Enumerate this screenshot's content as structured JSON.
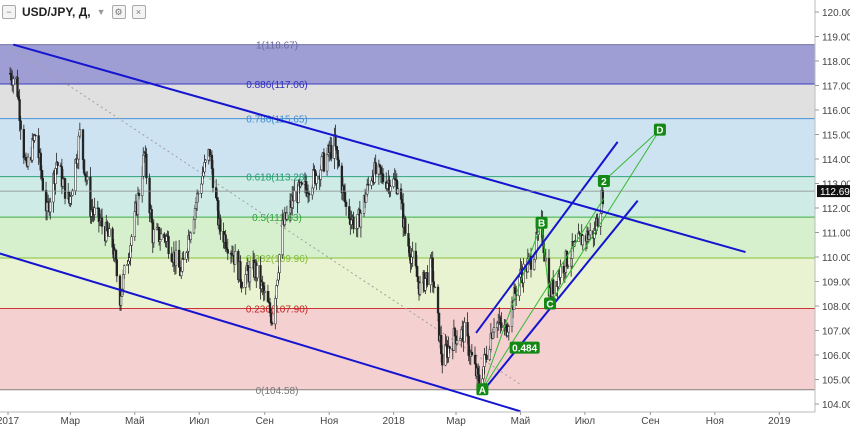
{
  "header": {
    "symbol": "USD/JPY, Д,",
    "icons": [
      "collapse-icon",
      "caret-down-icon",
      "settings-icon",
      "close-icon"
    ]
  },
  "chart_data": {
    "type": "candlestick",
    "title": "",
    "xlabel": "",
    "ylabel": "",
    "ylim": [
      104.0,
      120.0
    ],
    "y_ticks": [
      "104.00",
      "105.00",
      "106.00",
      "107.00",
      "108.00",
      "109.00",
      "110.00",
      "111.00",
      "112.00",
      "113.00",
      "114.00",
      "115.00",
      "116.00",
      "117.00",
      "118.00",
      "119.00",
      "120.00"
    ],
    "x_ticks": [
      "2017",
      "Мар",
      "Май",
      "Июл",
      "Сен",
      "Ноя",
      "2018",
      "Мар",
      "Май",
      "Июл",
      "Сен",
      "Ноя",
      "2019"
    ],
    "x_range": [
      "2017-01-01",
      "2019-01-31"
    ],
    "current_price": "112.69",
    "colors": {
      "candles": "#222222",
      "channel": "#1515d0",
      "pattern": "#35b835",
      "label_bg": "#148814",
      "price_tag": "#111111"
    },
    "fib_levels": [
      {
        "ratio": 1,
        "price": 118.67,
        "label": "1(118.67)",
        "color": "#6a6a9e",
        "fill": "#8d8dcd",
        "next": 117.06
      },
      {
        "ratio": 0.886,
        "price": 117.06,
        "label": "0.886(117.06)",
        "color": "#2d2dbd",
        "fill": "#dadada",
        "next": 115.65
      },
      {
        "ratio": 0.786,
        "price": 115.65,
        "label": "0.786(115.65)",
        "color": "#3b8bd3",
        "fill": "#c6def0",
        "next": 113.28
      },
      {
        "ratio": 0.618,
        "price": 113.28,
        "label": "0.618(113.28)",
        "color": "#1e9c6c",
        "fill": "#c6e9e0",
        "next": 111.63
      },
      {
        "ratio": 0.5,
        "price": 111.63,
        "label": "0.5(111.63)",
        "color": "#2ea534",
        "fill": "#cfedc4",
        "next": 109.96
      },
      {
        "ratio": 0.382,
        "price": 109.96,
        "label": "0.382(109.96)",
        "color": "#7fbc2e",
        "fill": "#e6f1c9",
        "next": 107.9
      },
      {
        "ratio": 0.236,
        "price": 107.9,
        "label": "0.236(107.90)",
        "color": "#c42424",
        "fill": "#f2c8c8",
        "next": 104.58
      },
      {
        "ratio": 0,
        "price": 104.58,
        "label": "0(104.58)",
        "color": "#777777",
        "fill": null,
        "next": null
      }
    ],
    "annotations": [
      {
        "label": "A",
        "date": "2018-03-26",
        "price": 104.6
      },
      {
        "label": "B",
        "date": "2018-05-21",
        "price": 111.4
      },
      {
        "label": "C",
        "date": "2018-05-29",
        "price": 108.1
      },
      {
        "label": "2",
        "date": "2018-07-19",
        "price": 113.1
      },
      {
        "label": "D",
        "date": "2018-09-10",
        "price": 115.2
      },
      {
        "label": "0.484",
        "date": "2018-05-05",
        "price": 106.3
      }
    ],
    "trend_lines": [
      {
        "from": [
          "2017-01-06",
          118.67
        ],
        "to": [
          "2018-11-30",
          110.2
        ]
      },
      {
        "from": [
          "2016-12-20",
          110.2
        ],
        "to": [
          "2018-05-01",
          103.7
        ]
      },
      {
        "from": [
          "2018-03-20",
          106.9
        ],
        "to": [
          "2018-08-01",
          114.7
        ]
      },
      {
        "from": [
          "2018-03-26",
          104.5
        ],
        "to": [
          "2018-08-20",
          112.3
        ]
      }
    ],
    "pattern_lines": [
      {
        "from": [
          "2018-03-26",
          104.6
        ],
        "to": [
          "2018-05-21",
          111.4
        ]
      },
      {
        "from": [
          "2018-05-21",
          111.4
        ],
        "to": [
          "2018-05-29",
          108.1
        ]
      },
      {
        "from": [
          "2018-05-29",
          108.1
        ],
        "to": [
          "2018-09-10",
          115.2
        ]
      },
      {
        "from": [
          "2018-07-19",
          113.1
        ],
        "to": [
          "2018-09-10",
          115.2
        ]
      },
      {
        "from": [
          "2018-03-26",
          104.6
        ],
        "to": [
          "2018-07-19",
          112.4
        ]
      }
    ],
    "dotted_line": {
      "from": [
        "2017-01-06",
        118.5
      ],
      "to": [
        "2018-05-01",
        104.8
      ]
    },
    "price_path": [
      [
        "2017-01-03",
        117.5
      ],
      [
        "2017-01-09",
        117.2
      ],
      [
        "2017-01-18",
        113.5
      ],
      [
        "2017-01-27",
        115.0
      ],
      [
        "2017-02-07",
        111.8
      ],
      [
        "2017-02-16",
        113.9
      ],
      [
        "2017-02-28",
        112.2
      ],
      [
        "2017-03-10",
        115.0
      ],
      [
        "2017-03-20",
        112.0
      ],
      [
        "2017-03-31",
        111.3
      ],
      [
        "2017-04-10",
        110.5
      ],
      [
        "2017-04-17",
        108.4
      ],
      [
        "2017-05-01",
        111.5
      ],
      [
        "2017-05-10",
        114.2
      ],
      [
        "2017-05-18",
        110.9
      ],
      [
        "2017-05-31",
        110.8
      ],
      [
        "2017-06-14",
        109.3
      ],
      [
        "2017-06-23",
        111.3
      ],
      [
        "2017-07-03",
        113.2
      ],
      [
        "2017-07-11",
        114.3
      ],
      [
        "2017-07-20",
        111.2
      ],
      [
        "2017-08-01",
        110.3
      ],
      [
        "2017-08-10",
        109.1
      ],
      [
        "2017-08-23",
        109.5
      ],
      [
        "2017-09-08",
        107.5
      ],
      [
        "2017-09-18",
        111.2
      ],
      [
        "2017-09-29",
        112.5
      ],
      [
        "2017-10-10",
        112.8
      ],
      [
        "2017-10-20",
        113.4
      ],
      [
        "2017-11-06",
        114.6
      ],
      [
        "2017-11-17",
        112.0
      ],
      [
        "2017-11-27",
        111.2
      ],
      [
        "2017-12-12",
        113.5
      ],
      [
        "2017-12-22",
        113.2
      ],
      [
        "2018-01-05",
        113.0
      ],
      [
        "2018-01-12",
        111.0
      ],
      [
        "2018-01-26",
        108.7
      ],
      [
        "2018-02-06",
        109.6
      ],
      [
        "2018-02-16",
        105.8
      ],
      [
        "2018-02-28",
        106.8
      ],
      [
        "2018-03-09",
        106.9
      ],
      [
        "2018-03-23",
        104.8
      ],
      [
        "2018-04-06",
        107.4
      ],
      [
        "2018-04-17",
        107.0
      ],
      [
        "2018-04-30",
        109.2
      ],
      [
        "2018-05-10",
        109.8
      ],
      [
        "2018-05-21",
        111.2
      ],
      [
        "2018-05-29",
        108.5
      ],
      [
        "2018-06-08",
        109.5
      ],
      [
        "2018-06-19",
        110.2
      ],
      [
        "2018-06-29",
        110.8
      ],
      [
        "2018-07-10",
        111.0
      ],
      [
        "2018-07-19",
        112.8
      ]
    ]
  }
}
